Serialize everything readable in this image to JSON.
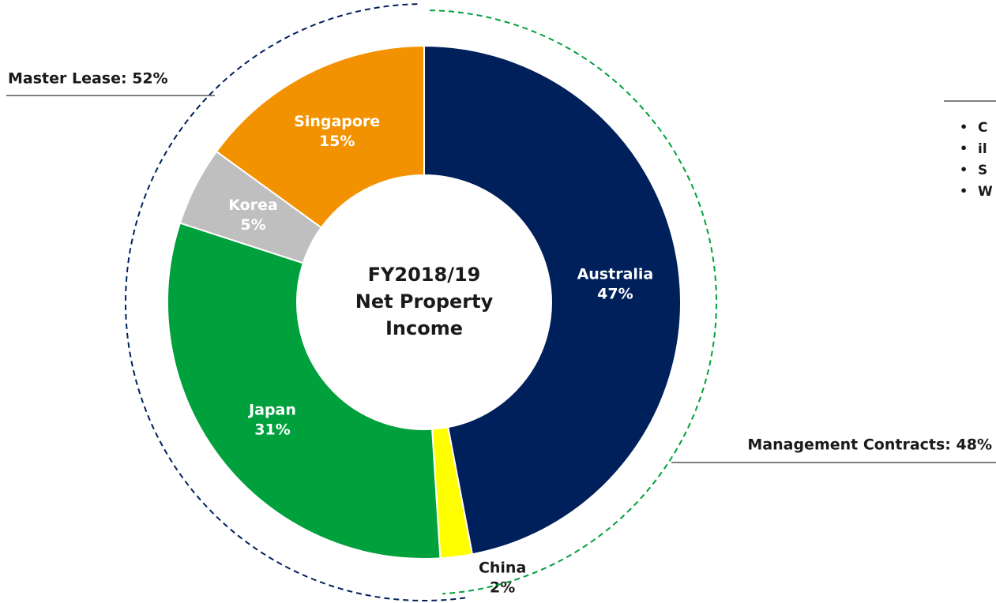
{
  "chart_data": {
    "type": "donut",
    "center_text": [
      "FY2018/19",
      "Net Property",
      "Income"
    ],
    "categories": [
      "Australia",
      "China",
      "Japan",
      "Korea",
      "Singapore"
    ],
    "values": [
      47,
      2,
      31,
      5,
      15
    ],
    "value_labels": [
      "47%",
      "2%",
      "31%",
      "5%",
      "15%"
    ],
    "colors": [
      "#00205b",
      "#ffff00",
      "#00a03c",
      "#bfbfbf",
      "#f39200"
    ],
    "label_colors": [
      "#ffffff",
      "#1a1a1a",
      "#ffffff",
      "#ffffff",
      "#ffffff"
    ],
    "annotations": [
      "Master Lease: 52%",
      "Management Contracts: 48%"
    ],
    "side_list": [
      "C",
      "il",
      "S",
      "W"
    ]
  }
}
